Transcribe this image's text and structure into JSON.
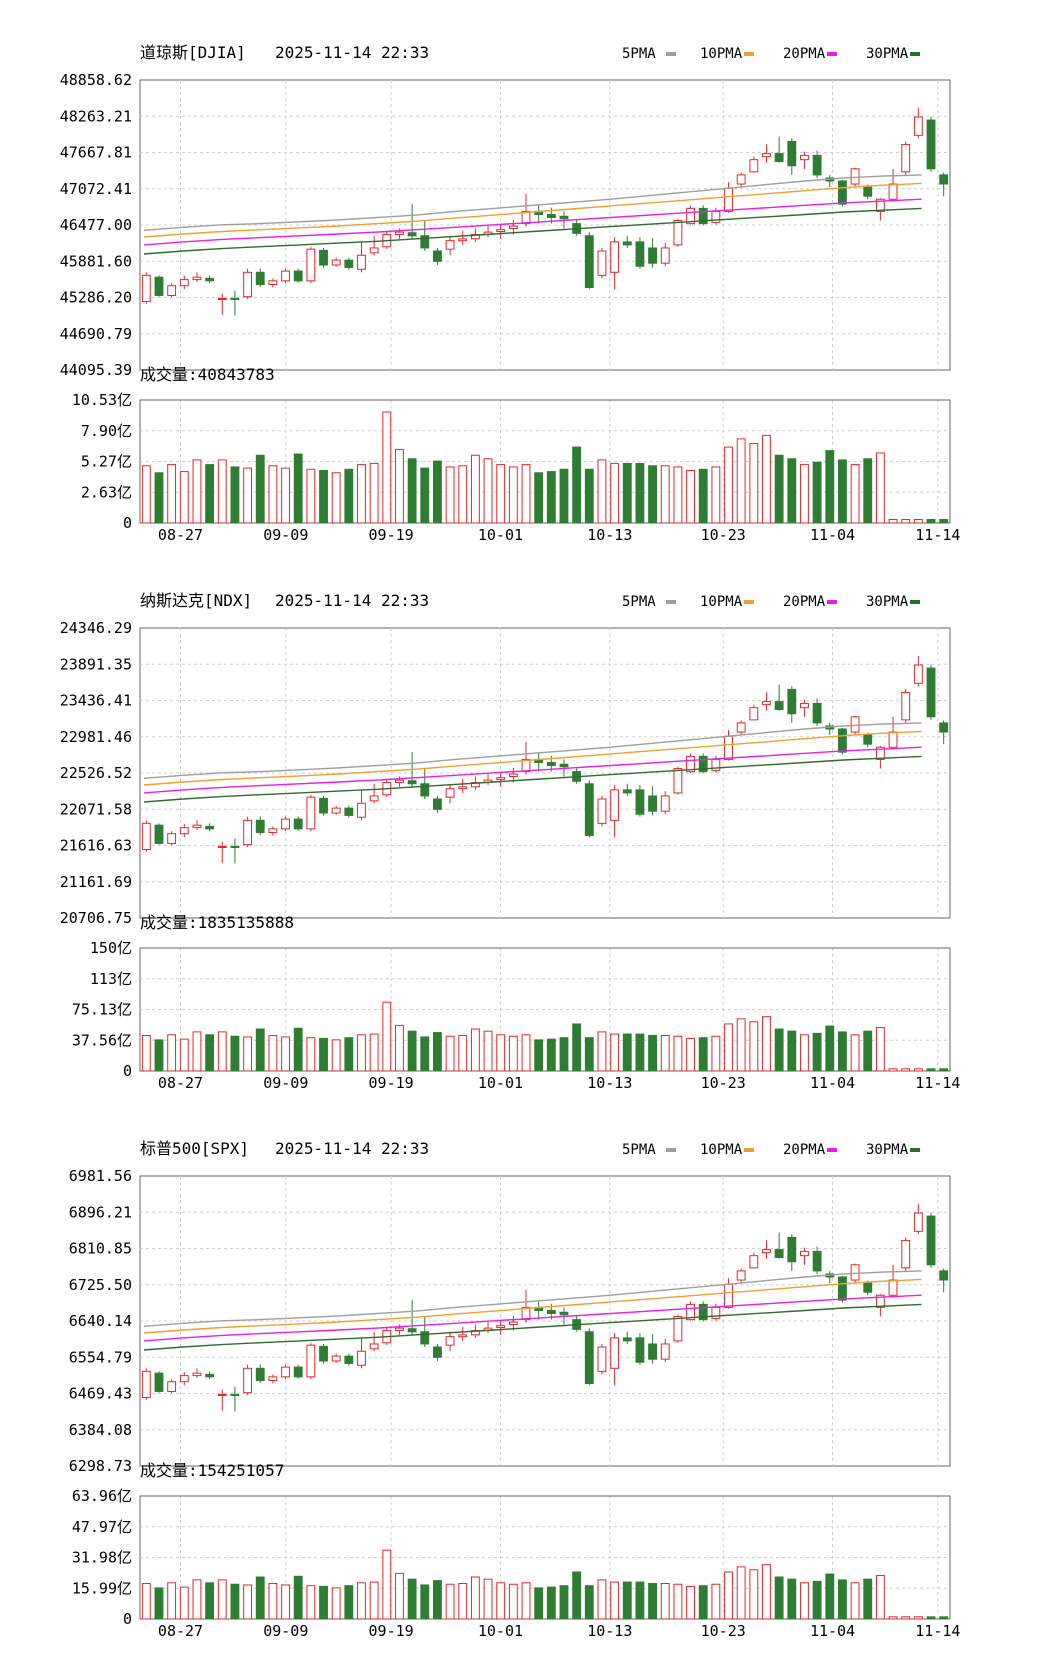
{
  "colors": {
    "up": "#e8262b",
    "down": "#2e7d32",
    "ma5": "#9e9e9e",
    "ma10": "#f0a030",
    "ma20": "#e81ee8",
    "ma30": "#2e6b2e",
    "grid": "#cfcfcf",
    "axis": "#666666",
    "text": "#000000"
  },
  "legend_labels": [
    "5PMA",
    "10PMA",
    "20PMA",
    "30PMA"
  ],
  "chart_data": [
    {
      "type": "candlestick",
      "name": "道琼斯[DJIA]",
      "timestamp": "2025-11-14 22:33",
      "price_ticks": [
        "48858.62",
        "48263.21",
        "47667.81",
        "47072.41",
        "46477.00",
        "45881.60",
        "45286.20",
        "44690.79",
        "44095.39"
      ],
      "ylim": [
        44095.39,
        48858.62
      ],
      "volume_label": "成交量:40843783",
      "volume_ticks": [
        "10.53亿",
        "7.90亿",
        "5.27亿",
        "2.63亿",
        "0"
      ],
      "volume_max": 10.53,
      "x_labels": [
        "08-27",
        "09-09",
        "09-19",
        "10-01",
        "10-13",
        "10-23",
        "11-04",
        "11-14"
      ],
      "candles": [
        {
          "o": 45220,
          "c": 45650,
          "h": 45700,
          "l": 45180
        },
        {
          "o": 45620,
          "c": 45320,
          "h": 45650,
          "l": 45300
        },
        {
          "o": 45320,
          "c": 45480,
          "h": 45520,
          "l": 45290
        },
        {
          "o": 45480,
          "c": 45580,
          "h": 45640,
          "l": 45420
        },
        {
          "o": 45580,
          "c": 45620,
          "h": 45700,
          "l": 45540
        },
        {
          "o": 45600,
          "c": 45560,
          "h": 45650,
          "l": 45520
        },
        {
          "o": 45260,
          "c": 45270,
          "h": 45350,
          "l": 45000
        },
        {
          "o": 45270,
          "c": 45260,
          "h": 45400,
          "l": 44990
        },
        {
          "o": 45300,
          "c": 45700,
          "h": 45760,
          "l": 45260
        },
        {
          "o": 45700,
          "c": 45500,
          "h": 45760,
          "l": 45460
        },
        {
          "o": 45500,
          "c": 45560,
          "h": 45600,
          "l": 45450
        },
        {
          "o": 45560,
          "c": 45720,
          "h": 45760,
          "l": 45520
        },
        {
          "o": 45720,
          "c": 45560,
          "h": 45760,
          "l": 45530
        },
        {
          "o": 45560,
          "c": 46080,
          "h": 46120,
          "l": 45520
        },
        {
          "o": 46060,
          "c": 45820,
          "h": 46100,
          "l": 45780
        },
        {
          "o": 45820,
          "c": 45900,
          "h": 45940,
          "l": 45790
        },
        {
          "o": 45900,
          "c": 45780,
          "h": 45940,
          "l": 45740
        },
        {
          "o": 45750,
          "c": 45980,
          "h": 46200,
          "l": 45700
        },
        {
          "o": 46020,
          "c": 46100,
          "h": 46300,
          "l": 45980
        },
        {
          "o": 46120,
          "c": 46320,
          "h": 46380,
          "l": 46080
        },
        {
          "o": 46320,
          "c": 46360,
          "h": 46420,
          "l": 46250
        },
        {
          "o": 46350,
          "c": 46300,
          "h": 46820,
          "l": 46250
        },
        {
          "o": 46300,
          "c": 46100,
          "h": 46550,
          "l": 46050
        },
        {
          "o": 46050,
          "c": 45880,
          "h": 46100,
          "l": 45820
        },
        {
          "o": 46080,
          "c": 46220,
          "h": 46300,
          "l": 45980
        },
        {
          "o": 46220,
          "c": 46250,
          "h": 46380,
          "l": 46150
        },
        {
          "o": 46250,
          "c": 46320,
          "h": 46420,
          "l": 46200
        },
        {
          "o": 46320,
          "c": 46360,
          "h": 46460,
          "l": 46280
        },
        {
          "o": 46370,
          "c": 46400,
          "h": 46480,
          "l": 46250
        },
        {
          "o": 46420,
          "c": 46460,
          "h": 46560,
          "l": 46320
        },
        {
          "o": 46500,
          "c": 46700,
          "h": 46990,
          "l": 46450
        },
        {
          "o": 46700,
          "c": 46650,
          "h": 46800,
          "l": 46500
        },
        {
          "o": 46650,
          "c": 46600,
          "h": 46760,
          "l": 46500
        },
        {
          "o": 46620,
          "c": 46580,
          "h": 46700,
          "l": 46420
        },
        {
          "o": 46500,
          "c": 46340,
          "h": 46560,
          "l": 46300
        },
        {
          "o": 46300,
          "c": 45450,
          "h": 46360,
          "l": 45420
        },
        {
          "o": 45650,
          "c": 46050,
          "h": 46100,
          "l": 45600
        },
        {
          "o": 45700,
          "c": 46200,
          "h": 46280,
          "l": 45420
        },
        {
          "o": 46200,
          "c": 46150,
          "h": 46300,
          "l": 46100
        },
        {
          "o": 46200,
          "c": 45800,
          "h": 46280,
          "l": 45760
        },
        {
          "o": 46100,
          "c": 45850,
          "h": 46260,
          "l": 45780
        },
        {
          "o": 45850,
          "c": 46100,
          "h": 46180,
          "l": 45800
        },
        {
          "o": 46150,
          "c": 46550,
          "h": 46580,
          "l": 46120
        },
        {
          "o": 46500,
          "c": 46750,
          "h": 46800,
          "l": 46480
        },
        {
          "o": 46750,
          "c": 46500,
          "h": 46800,
          "l": 46470
        },
        {
          "o": 46520,
          "c": 46700,
          "h": 46760,
          "l": 46480
        },
        {
          "o": 46700,
          "c": 47080,
          "h": 47180,
          "l": 46680
        },
        {
          "o": 47150,
          "c": 47300,
          "h": 47340,
          "l": 47100
        },
        {
          "o": 47350,
          "c": 47550,
          "h": 47600,
          "l": 47340
        },
        {
          "o": 47600,
          "c": 47650,
          "h": 47800,
          "l": 47500
        },
        {
          "o": 47650,
          "c": 47520,
          "h": 47930,
          "l": 47500
        },
        {
          "o": 47850,
          "c": 47450,
          "h": 47900,
          "l": 47300
        },
        {
          "o": 47550,
          "c": 47620,
          "h": 47680,
          "l": 47400
        },
        {
          "o": 47620,
          "c": 47300,
          "h": 47700,
          "l": 47250
        },
        {
          "o": 47250,
          "c": 47200,
          "h": 47300,
          "l": 47100
        },
        {
          "o": 47200,
          "c": 46820,
          "h": 47220,
          "l": 46780
        },
        {
          "o": 47150,
          "c": 47400,
          "h": 47420,
          "l": 47100
        },
        {
          "o": 47100,
          "c": 46950,
          "h": 47140,
          "l": 46900
        },
        {
          "o": 46700,
          "c": 46900,
          "h": 46920,
          "l": 46550
        },
        {
          "o": 46900,
          "c": 47150,
          "h": 47400,
          "l": 46860
        },
        {
          "o": 47350,
          "c": 47800,
          "h": 47850,
          "l": 47300
        },
        {
          "o": 47950,
          "c": 48250,
          "h": 48400,
          "l": 47900
        },
        {
          "o": 48200,
          "c": 47400,
          "h": 48260,
          "l": 47350
        },
        {
          "o": 47300,
          "c": 47150,
          "h": 47340,
          "l": 46950
        }
      ],
      "volumes": [
        4.9,
        4.3,
        5.0,
        4.4,
        5.4,
        5.0,
        5.4,
        4.8,
        4.7,
        5.8,
        4.9,
        4.7,
        5.9,
        4.6,
        4.5,
        4.3,
        4.6,
        5.0,
        5.1,
        9.5,
        6.3,
        5.5,
        4.7,
        5.3,
        4.8,
        4.9,
        5.8,
        5.5,
        5.0,
        4.8,
        5.0,
        4.3,
        4.4,
        4.6,
        6.5,
        4.6,
        5.4,
        5.1,
        5.1,
        5.1,
        4.9,
        4.9,
        4.8,
        4.5,
        4.6,
        4.8,
        6.5,
        7.2,
        6.8,
        7.5,
        5.8,
        5.5,
        5.0,
        5.2,
        6.2,
        5.4,
        5.0,
        5.5,
        6.0,
        0.3,
        0.3,
        0.3,
        0.3,
        0.3
      ],
      "ma": [
        [
          46390,
          46440,
          46480,
          46500,
          46530,
          46560,
          46600,
          46640,
          46700,
          46750,
          46800,
          46850,
          46900,
          46960,
          47020,
          47080,
          47140,
          47200,
          47250,
          47280,
          47300
        ],
        [
          46280,
          46330,
          46370,
          46400,
          46430,
          46460,
          46500,
          46540,
          46590,
          46640,
          46690,
          46740,
          46790,
          46840,
          46890,
          46940,
          46990,
          47040,
          47090,
          47130,
          47160
        ],
        [
          46150,
          46200,
          46240,
          46270,
          46300,
          46330,
          46360,
          46400,
          46440,
          46480,
          46520,
          46560,
          46600,
          46640,
          46680,
          46720,
          46760,
          46800,
          46840,
          46870,
          46900
        ],
        [
          46000,
          46050,
          46090,
          46120,
          46150,
          46180,
          46210,
          46250,
          46290,
          46330,
          46370,
          46410,
          46450,
          46490,
          46530,
          46570,
          46610,
          46650,
          46690,
          46720,
          46750
        ]
      ]
    },
    {
      "type": "candlestick",
      "name": "纳斯达克[NDX]",
      "timestamp": "2025-11-14 22:33",
      "price_ticks": [
        "24346.29",
        "23891.35",
        "23436.41",
        "22981.46",
        "22526.52",
        "22071.58",
        "21616.63",
        "21161.69",
        "20706.75"
      ],
      "ylim": [
        20706.75,
        24346.29
      ],
      "volume_label": "成交量:1835135888",
      "volume_ticks": [
        "150亿",
        "113亿",
        "75.13亿",
        "37.56亿",
        "0"
      ],
      "volume_max": 150,
      "x_labels": [
        "08-27",
        "09-09",
        "09-19",
        "10-01",
        "10-13",
        "10-23",
        "11-04",
        "11-14"
      ],
      "candles": [],
      "volumes": [],
      "ma": []
    },
    {
      "type": "candlestick",
      "name": "标普500[SPX]",
      "timestamp": "2025-11-14 22:33",
      "price_ticks": [
        "6981.56",
        "6896.21",
        "6810.85",
        "6725.50",
        "6640.14",
        "6554.79",
        "6469.43",
        "6384.08",
        "6298.73"
      ],
      "ylim": [
        6298.73,
        6981.56
      ],
      "volume_label": "成交量:154251057",
      "volume_ticks": [
        "63.96亿",
        "47.97亿",
        "31.98亿",
        "15.99亿",
        "0"
      ],
      "volume_max": 63.96,
      "x_labels": [
        "08-27",
        "09-09",
        "09-19",
        "10-01",
        "10-13",
        "10-23",
        "11-04",
        "11-14"
      ],
      "candles": [],
      "volumes": [],
      "ma": []
    }
  ]
}
